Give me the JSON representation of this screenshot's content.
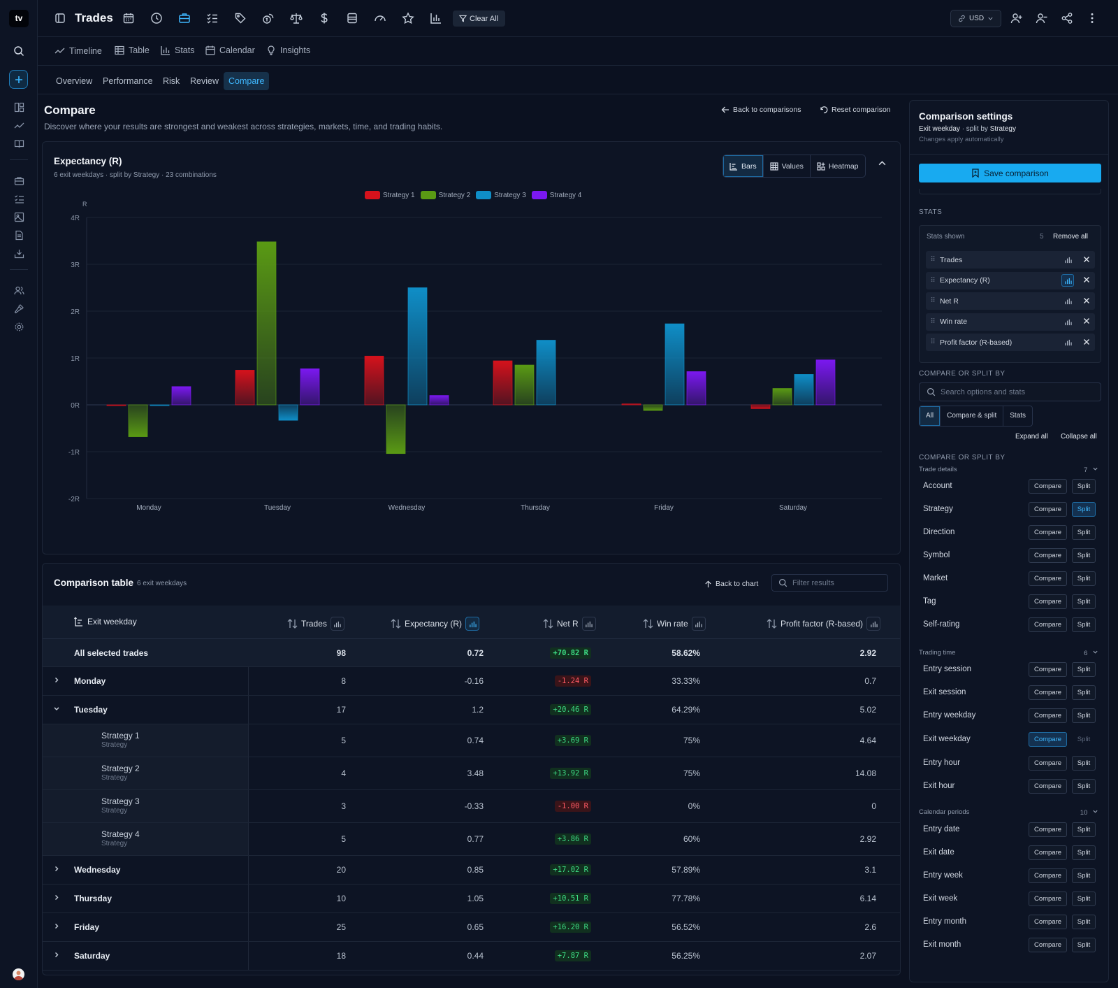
{
  "rail": {
    "logo": "tv"
  },
  "topbar": {
    "title": "Trades",
    "clear_all": "Clear All",
    "currency": "USD"
  },
  "view_tabs": [
    "Timeline",
    "Table",
    "Stats",
    "Calendar",
    "Insights"
  ],
  "sub_tabs": [
    "Overview",
    "Performance",
    "Risk",
    "Review",
    "Compare"
  ],
  "page": {
    "title": "Compare",
    "description": "Discover where your results are strongest and weakest across strategies, markets, time, and trading habits.",
    "back_link": "Back to comparisons",
    "reset_link": "Reset comparison"
  },
  "chart_card": {
    "title": "Expectancy (R)",
    "subtitle": "6 exit weekdays · split by Strategy · 23 combinations",
    "views": [
      "Bars",
      "Values",
      "Heatmap"
    ],
    "active_view": "Bars"
  },
  "chart_data": {
    "type": "bar",
    "ylabel": "R",
    "ylim": [
      -2,
      4
    ],
    "yticks": [
      "4R",
      "3R",
      "2R",
      "1R",
      "0R",
      "-1R",
      "-2R"
    ],
    "grid": true,
    "legend": "top-center",
    "categories": [
      "Monday",
      "Tuesday",
      "Wednesday",
      "Thursday",
      "Friday",
      "Saturday"
    ],
    "series": [
      {
        "name": "Strategy 1",
        "color": "#d5121c",
        "values": [
          0,
          0.74,
          1.04,
          0.94,
          0.02,
          -0.08
        ]
      },
      {
        "name": "Strategy 2",
        "color": "#5a9a14",
        "values": [
          -0.68,
          3.48,
          -1.04,
          0.85,
          -0.12,
          0.35
        ]
      },
      {
        "name": "Strategy 3",
        "color": "#0f8ec7",
        "values": [
          0,
          -0.33,
          2.5,
          1.38,
          1.73,
          0.65
        ]
      },
      {
        "name": "Strategy 4",
        "color": "#7b18f0",
        "values": [
          0.39,
          0.77,
          0.2,
          null,
          0.71,
          0.96
        ]
      }
    ]
  },
  "table": {
    "title": "Comparison table",
    "count": "6 exit weekdays",
    "back_to_chart": "Back to chart",
    "filter_placeholder": "Filter results",
    "columns": [
      "Exit weekday",
      "Trades",
      "Expectancy (R)",
      "Net R",
      "Win rate",
      "Profit factor (R-based)"
    ],
    "rows": [
      {
        "label": "All selected trades",
        "trades": "98",
        "exp": "0.72",
        "net": "+70.82 R",
        "win": "58.62%",
        "pf": "2.92"
      },
      {
        "label": "Monday",
        "trades": "8",
        "exp": "-0.16",
        "net": "-1.24 R",
        "win": "33.33%",
        "pf": "0.7"
      },
      {
        "label": "Tuesday",
        "trades": "17",
        "exp": "1.2",
        "net": "+20.46 R",
        "win": "64.29%",
        "pf": "5.02"
      },
      {
        "label": "Strategy 1",
        "sub": "Strategy",
        "trades": "5",
        "exp": "0.74",
        "net": "+3.69 R",
        "win": "75%",
        "pf": "4.64"
      },
      {
        "label": "Strategy 2",
        "sub": "Strategy",
        "trades": "4",
        "exp": "3.48",
        "net": "+13.92 R",
        "win": "75%",
        "pf": "14.08"
      },
      {
        "label": "Strategy 3",
        "sub": "Strategy",
        "trades": "3",
        "exp": "-0.33",
        "net": "-1.00 R",
        "win": "0%",
        "pf": "0"
      },
      {
        "label": "Strategy 4",
        "sub": "Strategy",
        "trades": "5",
        "exp": "0.77",
        "net": "+3.86 R",
        "win": "60%",
        "pf": "2.92"
      },
      {
        "label": "Wednesday",
        "trades": "20",
        "exp": "0.85",
        "net": "+17.02 R",
        "win": "57.89%",
        "pf": "3.1"
      },
      {
        "label": "Thursday",
        "trades": "10",
        "exp": "1.05",
        "net": "+10.51 R",
        "win": "77.78%",
        "pf": "6.14"
      },
      {
        "label": "Friday",
        "trades": "25",
        "exp": "0.65",
        "net": "+16.20 R",
        "win": "56.52%",
        "pf": "2.6"
      },
      {
        "label": "Saturday",
        "trades": "18",
        "exp": "0.44",
        "net": "+7.87 R",
        "win": "56.25%",
        "pf": "2.07"
      }
    ]
  },
  "settings": {
    "title": "Comparison settings",
    "summary_a": "Exit weekday",
    "summary_b": " · split by ",
    "summary_c": "Strategy",
    "note": "Changes apply automatically",
    "save": "Save comparison",
    "stats_section": "STATS",
    "stats_shown": "Stats shown",
    "stats_count": "5",
    "remove_all": "Remove all",
    "stats": [
      "Trades",
      "Expectancy (R)",
      "Net R",
      "Win rate",
      "Profit factor (R-based)"
    ],
    "compare_section": "COMPARE OR SPLIT BY",
    "search_placeholder": "Search options and stats",
    "filters": [
      "All",
      "Compare & split",
      "Stats"
    ],
    "expand_all": "Expand all",
    "collapse_all": "Collapse all",
    "compare_section2": "COMPARE OR SPLIT BY",
    "btn_compare": "Compare",
    "btn_split": "Split",
    "groups": [
      {
        "name": "Trade details",
        "count": "7",
        "items": [
          "Account",
          "Strategy",
          "Direction",
          "Symbol",
          "Market",
          "Tag",
          "Self-rating"
        ]
      },
      {
        "name": "Trading time",
        "count": "6",
        "items": [
          "Entry session",
          "Exit session",
          "Entry weekday",
          "Exit weekday",
          "Entry hour",
          "Exit hour"
        ]
      },
      {
        "name": "Calendar periods",
        "count": "10",
        "items": [
          "Entry date",
          "Exit date",
          "Entry week",
          "Exit week",
          "Entry month",
          "Exit month"
        ]
      }
    ]
  }
}
